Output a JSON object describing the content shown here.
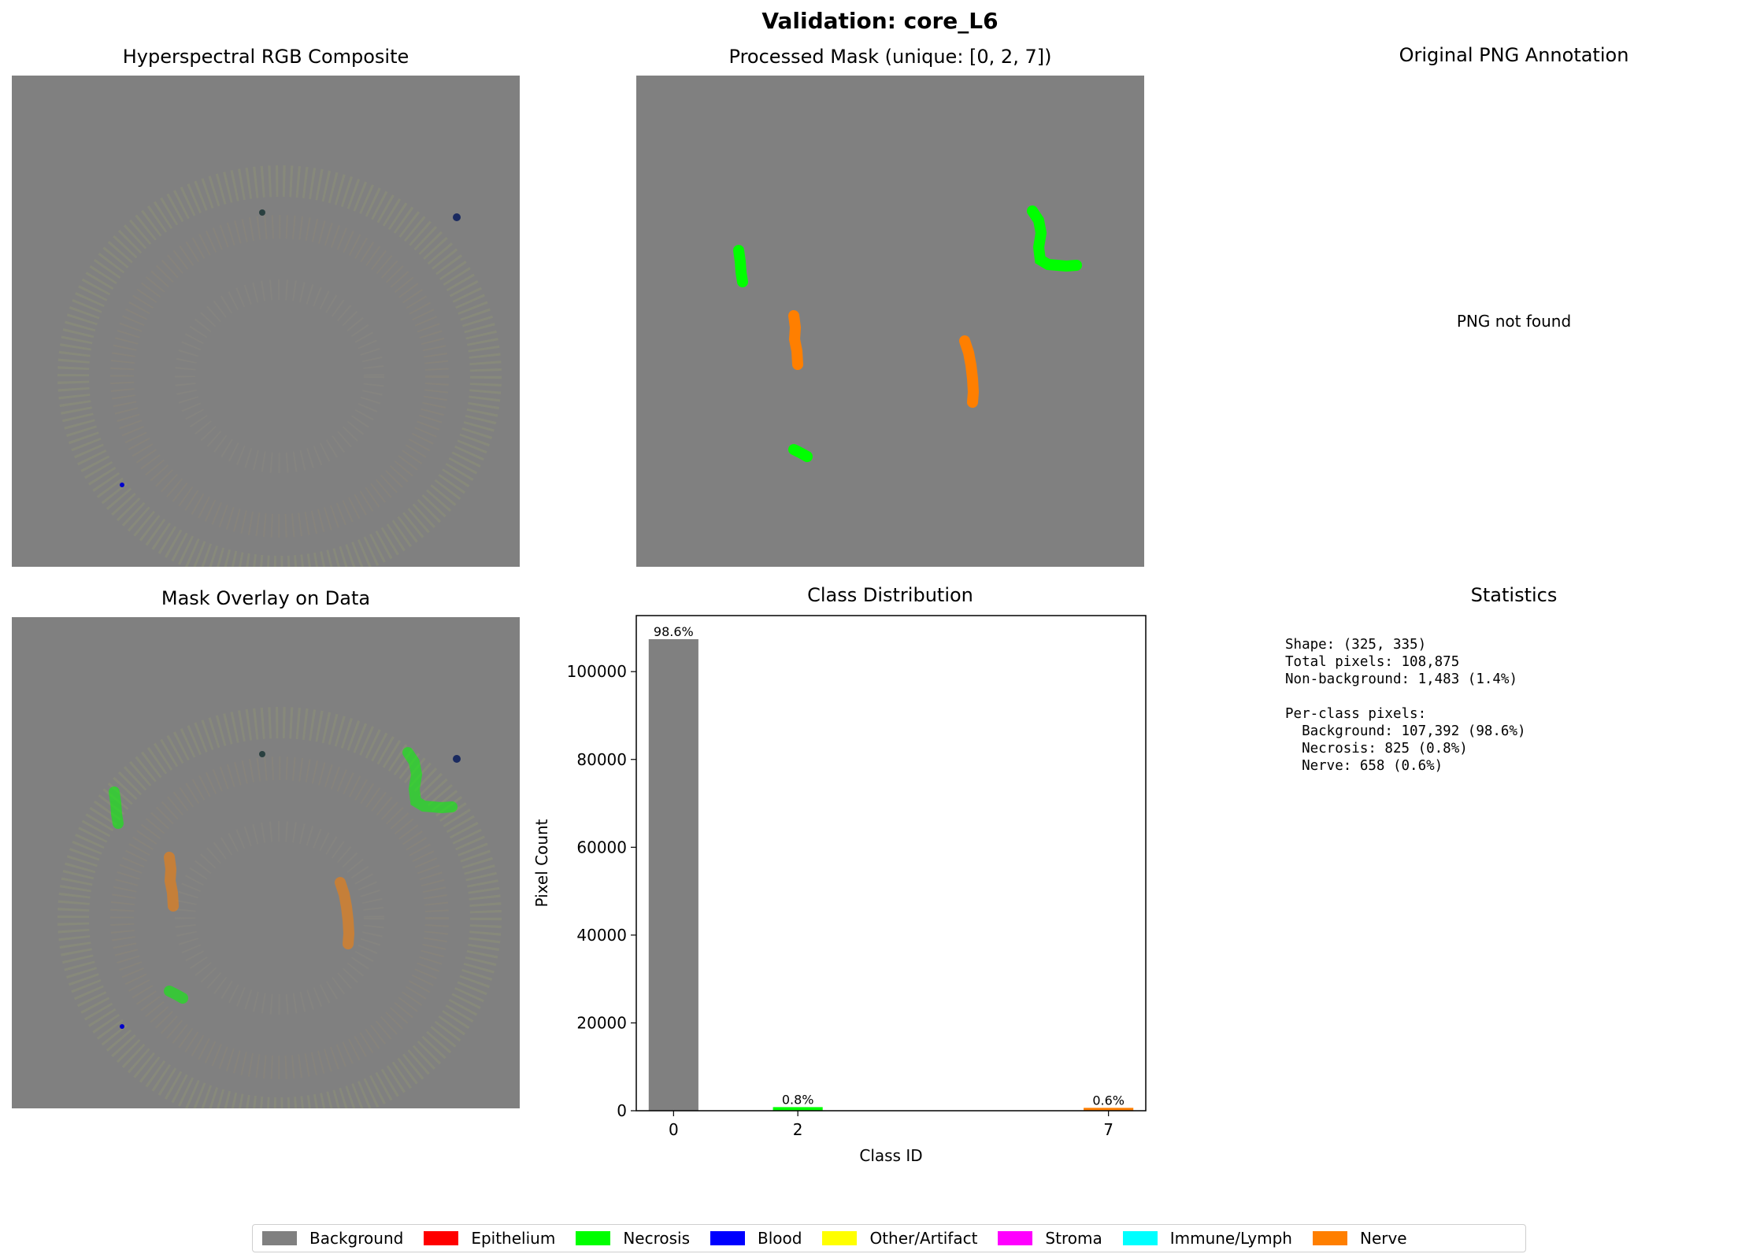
{
  "figure": {
    "title": "Validation: core_L6"
  },
  "panels": {
    "rgb": {
      "title": "Hyperspectral RGB Composite"
    },
    "mask": {
      "title": "Processed Mask (unique: [0, 2, 7])"
    },
    "png": {
      "title": "Original PNG Annotation",
      "message": "PNG not found"
    },
    "overlay": {
      "title": "Mask Overlay on Data"
    },
    "distribution": {
      "title": "Class Distribution"
    },
    "statistics": {
      "title": "Statistics",
      "lines": [
        "Shape: (325, 335)",
        "Total pixels: 108,875",
        "Non-background: 1,483 (1.4%)",
        "",
        "Per-class pixels:",
        "  Background: 107,392 (98.6%)",
        "  Necrosis: 825 (0.8%)",
        "  Nerve: 658 (0.6%)"
      ]
    }
  },
  "colors": {
    "background": "#808080",
    "necrosis": "#00ff00",
    "nerve": "#ff7f00"
  },
  "legend": [
    {
      "label": "Background",
      "color": "#808080"
    },
    {
      "label": "Epithelium",
      "color": "#ff0000"
    },
    {
      "label": "Necrosis",
      "color": "#00ff00"
    },
    {
      "label": "Blood",
      "color": "#0000ff"
    },
    {
      "label": "Other/Artifact",
      "color": "#ffff00"
    },
    {
      "label": "Stroma",
      "color": "#ff00ff"
    },
    {
      "label": "Immune/Lymph",
      "color": "#00ffff"
    },
    {
      "label": "Nerve",
      "color": "#ff7f00"
    }
  ],
  "chart_data": {
    "type": "bar",
    "title": "Class Distribution",
    "xlabel": "Class ID",
    "ylabel": "Pixel Count",
    "x": [
      0,
      2,
      7
    ],
    "values": [
      107392,
      825,
      658
    ],
    "data_labels": [
      "98.6%",
      "0.8%",
      "0.6%"
    ],
    "bar_colors": [
      "#808080",
      "#00ff00",
      "#ff7f00"
    ],
    "xticks": [
      "0",
      "2",
      "7"
    ],
    "yticks": [
      "0",
      "20000",
      "40000",
      "60000",
      "80000",
      "100000"
    ],
    "xlim": [
      -0.6,
      7.6
    ],
    "ylim": [
      0,
      112762
    ]
  }
}
